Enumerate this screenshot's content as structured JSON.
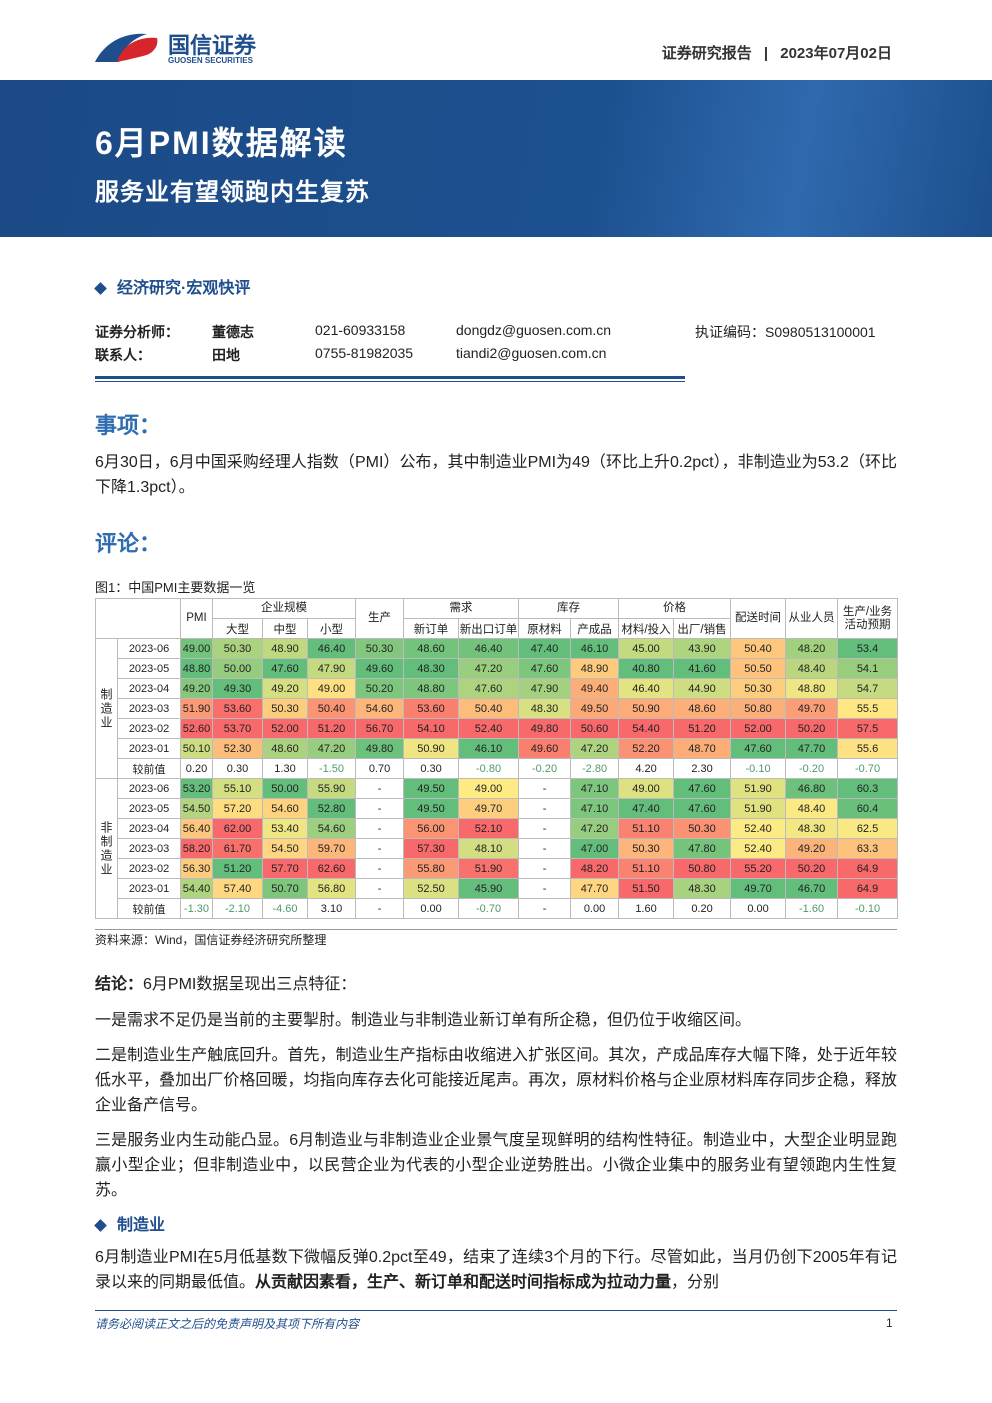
{
  "header": {
    "logo_cn": "国信证券",
    "logo_en": "GUOSEN SECURITIES",
    "report_type": "证券研究报告",
    "separator": "|",
    "date": "2023年07月02日"
  },
  "banner": {
    "title": "6月PMI数据解读",
    "subtitle": "服务业有望领跑内生复苏"
  },
  "section_tag": "经济研究·宏观快评",
  "contacts": [
    [
      "证券分析师：",
      "董德志",
      "021-60933158",
      "dongdz@guosen.com.cn",
      "执证编码：S0980513100001"
    ],
    [
      "联系人：",
      "田地",
      "0755-81982035",
      "tiandi2@guosen.com.cn"
    ]
  ],
  "matter": {
    "heading": "事项：",
    "text": "6月30日，6月中国采购经理人指数（PMI）公布，其中制造业PMI为49（环比上升0.2pct），非制造业为53.2（环比下降1.3pct）。"
  },
  "comment": {
    "heading": "评论："
  },
  "figure": {
    "caption": "图1：中国PMI主要数据一览",
    "table": {
      "header_top": [
        "PMI",
        "企业规模",
        "生产",
        "需求",
        "库存",
        "价格",
        "配送时间",
        "从业人员",
        "生产/业务活动预期"
      ],
      "header_sub": [
        "大型",
        "中型",
        "小型",
        "新订单",
        "新出口订单",
        "原材料",
        "产成品",
        "材料/投入",
        "出厂/销售"
      ],
      "groups": [
        {
          "label": "制造业",
          "rows": [
            {
              "label": "2023-06",
              "cells": [
                "49.00",
                "50.30",
                "48.90",
                "46.40",
                "50.30",
                "48.60",
                "46.40",
                "47.40",
                "46.10",
                "45.00",
                "43.90",
                "50.40",
                "48.20",
                "53.4"
              ]
            },
            {
              "label": "2023-05",
              "cells": [
                "48.80",
                "50.00",
                "47.60",
                "47.90",
                "49.60",
                "48.30",
                "47.20",
                "47.60",
                "48.90",
                "40.80",
                "41.60",
                "50.50",
                "48.40",
                "54.1"
              ]
            },
            {
              "label": "2023-04",
              "cells": [
                "49.20",
                "49.30",
                "49.20",
                "49.00",
                "50.20",
                "48.80",
                "47.60",
                "47.90",
                "49.40",
                "46.40",
                "44.90",
                "50.30",
                "48.80",
                "54.7"
              ]
            },
            {
              "label": "2023-03",
              "cells": [
                "51.90",
                "53.60",
                "50.30",
                "50.40",
                "54.60",
                "53.60",
                "50.40",
                "48.30",
                "49.50",
                "50.90",
                "48.60",
                "50.80",
                "49.70",
                "55.5"
              ]
            },
            {
              "label": "2023-02",
              "cells": [
                "52.60",
                "53.70",
                "52.00",
                "51.20",
                "56.70",
                "54.10",
                "52.40",
                "49.80",
                "50.60",
                "54.40",
                "51.20",
                "52.00",
                "50.20",
                "57.5"
              ]
            },
            {
              "label": "2023-01",
              "cells": [
                "50.10",
                "52.30",
                "48.60",
                "47.20",
                "49.80",
                "50.90",
                "46.10",
                "49.60",
                "47.20",
                "52.20",
                "48.70",
                "47.60",
                "47.70",
                "55.6"
              ]
            },
            {
              "label": "较前值",
              "cells": [
                "0.20",
                "0.30",
                "1.30",
                "-1.50",
                "0.70",
                "0.30",
                "-0.80",
                "-0.20",
                "-2.80",
                "4.20",
                "2.30",
                "-0.10",
                "-0.20",
                "-0.70"
              ]
            }
          ]
        },
        {
          "label": "非制造业",
          "rows": [
            {
              "label": "2023-06",
              "cells": [
                "53.20",
                "55.10",
                "50.00",
                "55.90",
                "-",
                "49.50",
                "49.00",
                "-",
                "47.10",
                "49.00",
                "47.60",
                "51.90",
                "46.80",
                "60.3"
              ]
            },
            {
              "label": "2023-05",
              "cells": [
                "54.50",
                "57.20",
                "54.60",
                "52.80",
                "-",
                "49.50",
                "49.70",
                "-",
                "47.10",
                "47.40",
                "47.60",
                "51.90",
                "48.40",
                "60.4"
              ]
            },
            {
              "label": "2023-04",
              "cells": [
                "56.40",
                "62.00",
                "53.40",
                "54.60",
                "-",
                "56.00",
                "52.10",
                "-",
                "47.20",
                "51.10",
                "50.30",
                "52.40",
                "48.30",
                "62.5"
              ]
            },
            {
              "label": "2023-03",
              "cells": [
                "58.20",
                "61.70",
                "54.50",
                "59.70",
                "-",
                "57.30",
                "48.10",
                "-",
                "47.00",
                "50.30",
                "47.80",
                "52.40",
                "49.20",
                "63.3"
              ]
            },
            {
              "label": "2023-02",
              "cells": [
                "56.30",
                "51.20",
                "57.70",
                "62.60",
                "-",
                "55.80",
                "51.90",
                "-",
                "48.20",
                "51.10",
                "50.80",
                "55.20",
                "50.20",
                "64.9"
              ]
            },
            {
              "label": "2023-01",
              "cells": [
                "54.40",
                "57.40",
                "50.70",
                "56.80",
                "-",
                "52.50",
                "45.90",
                "-",
                "47.70",
                "51.50",
                "48.30",
                "49.70",
                "46.70",
                "64.9"
              ]
            },
            {
              "label": "较前值",
              "cells": [
                "-1.30",
                "-2.10",
                "-4.60",
                "3.10",
                "-",
                "0.00",
                "-0.70",
                "-",
                "0.00",
                "1.60",
                "0.20",
                "0.00",
                "-1.60",
                "-0.10"
              ]
            }
          ]
        }
      ]
    },
    "source": "资料来源：Wind，国信证券经济研究所整理"
  },
  "conclusion": {
    "lead": "结论：",
    "text": "6月PMI数据呈现出三点特征："
  },
  "points": [
    "一是需求不足仍是当前的主要掣肘。制造业与非制造业新订单有所企稳，但仍位于收缩区间。",
    "二是制造业生产触底回升。首先，制造业生产指标由收缩进入扩张区间。其次，产成品库存大幅下降，处于近年较低水平，叠加出厂价格回暖，均指向库存去化可能接近尾声。再次，原材料价格与企业原材料库存同步企稳，释放企业备产信号。",
    "三是服务业内生动能凸显。6月制造业与非制造业企业景气度呈现鲜明的结构性特征。制造业中，大型企业明显跑赢小型企业；但非制造业中，以民营企业为代表的小型企业逆势胜出。小微企业集中的服务业有望领跑内生性复苏。"
  ],
  "manufacturing": {
    "heading": "制造业",
    "text": "6月制造业PMI在5月低基数下微幅反弹0.2pct至49，结束了连续3个月的下行。尽管如此，当月仍创下2005年有记录以来的同期最低值。",
    "bold": "从贡献因素看，生产、新订单和配送时间指标成为拉动力量",
    "tail": "，分别"
  },
  "footer": {
    "disclaimer": "请务必阅读正文之后的免责声明及其项下所有内容",
    "page": "1"
  }
}
